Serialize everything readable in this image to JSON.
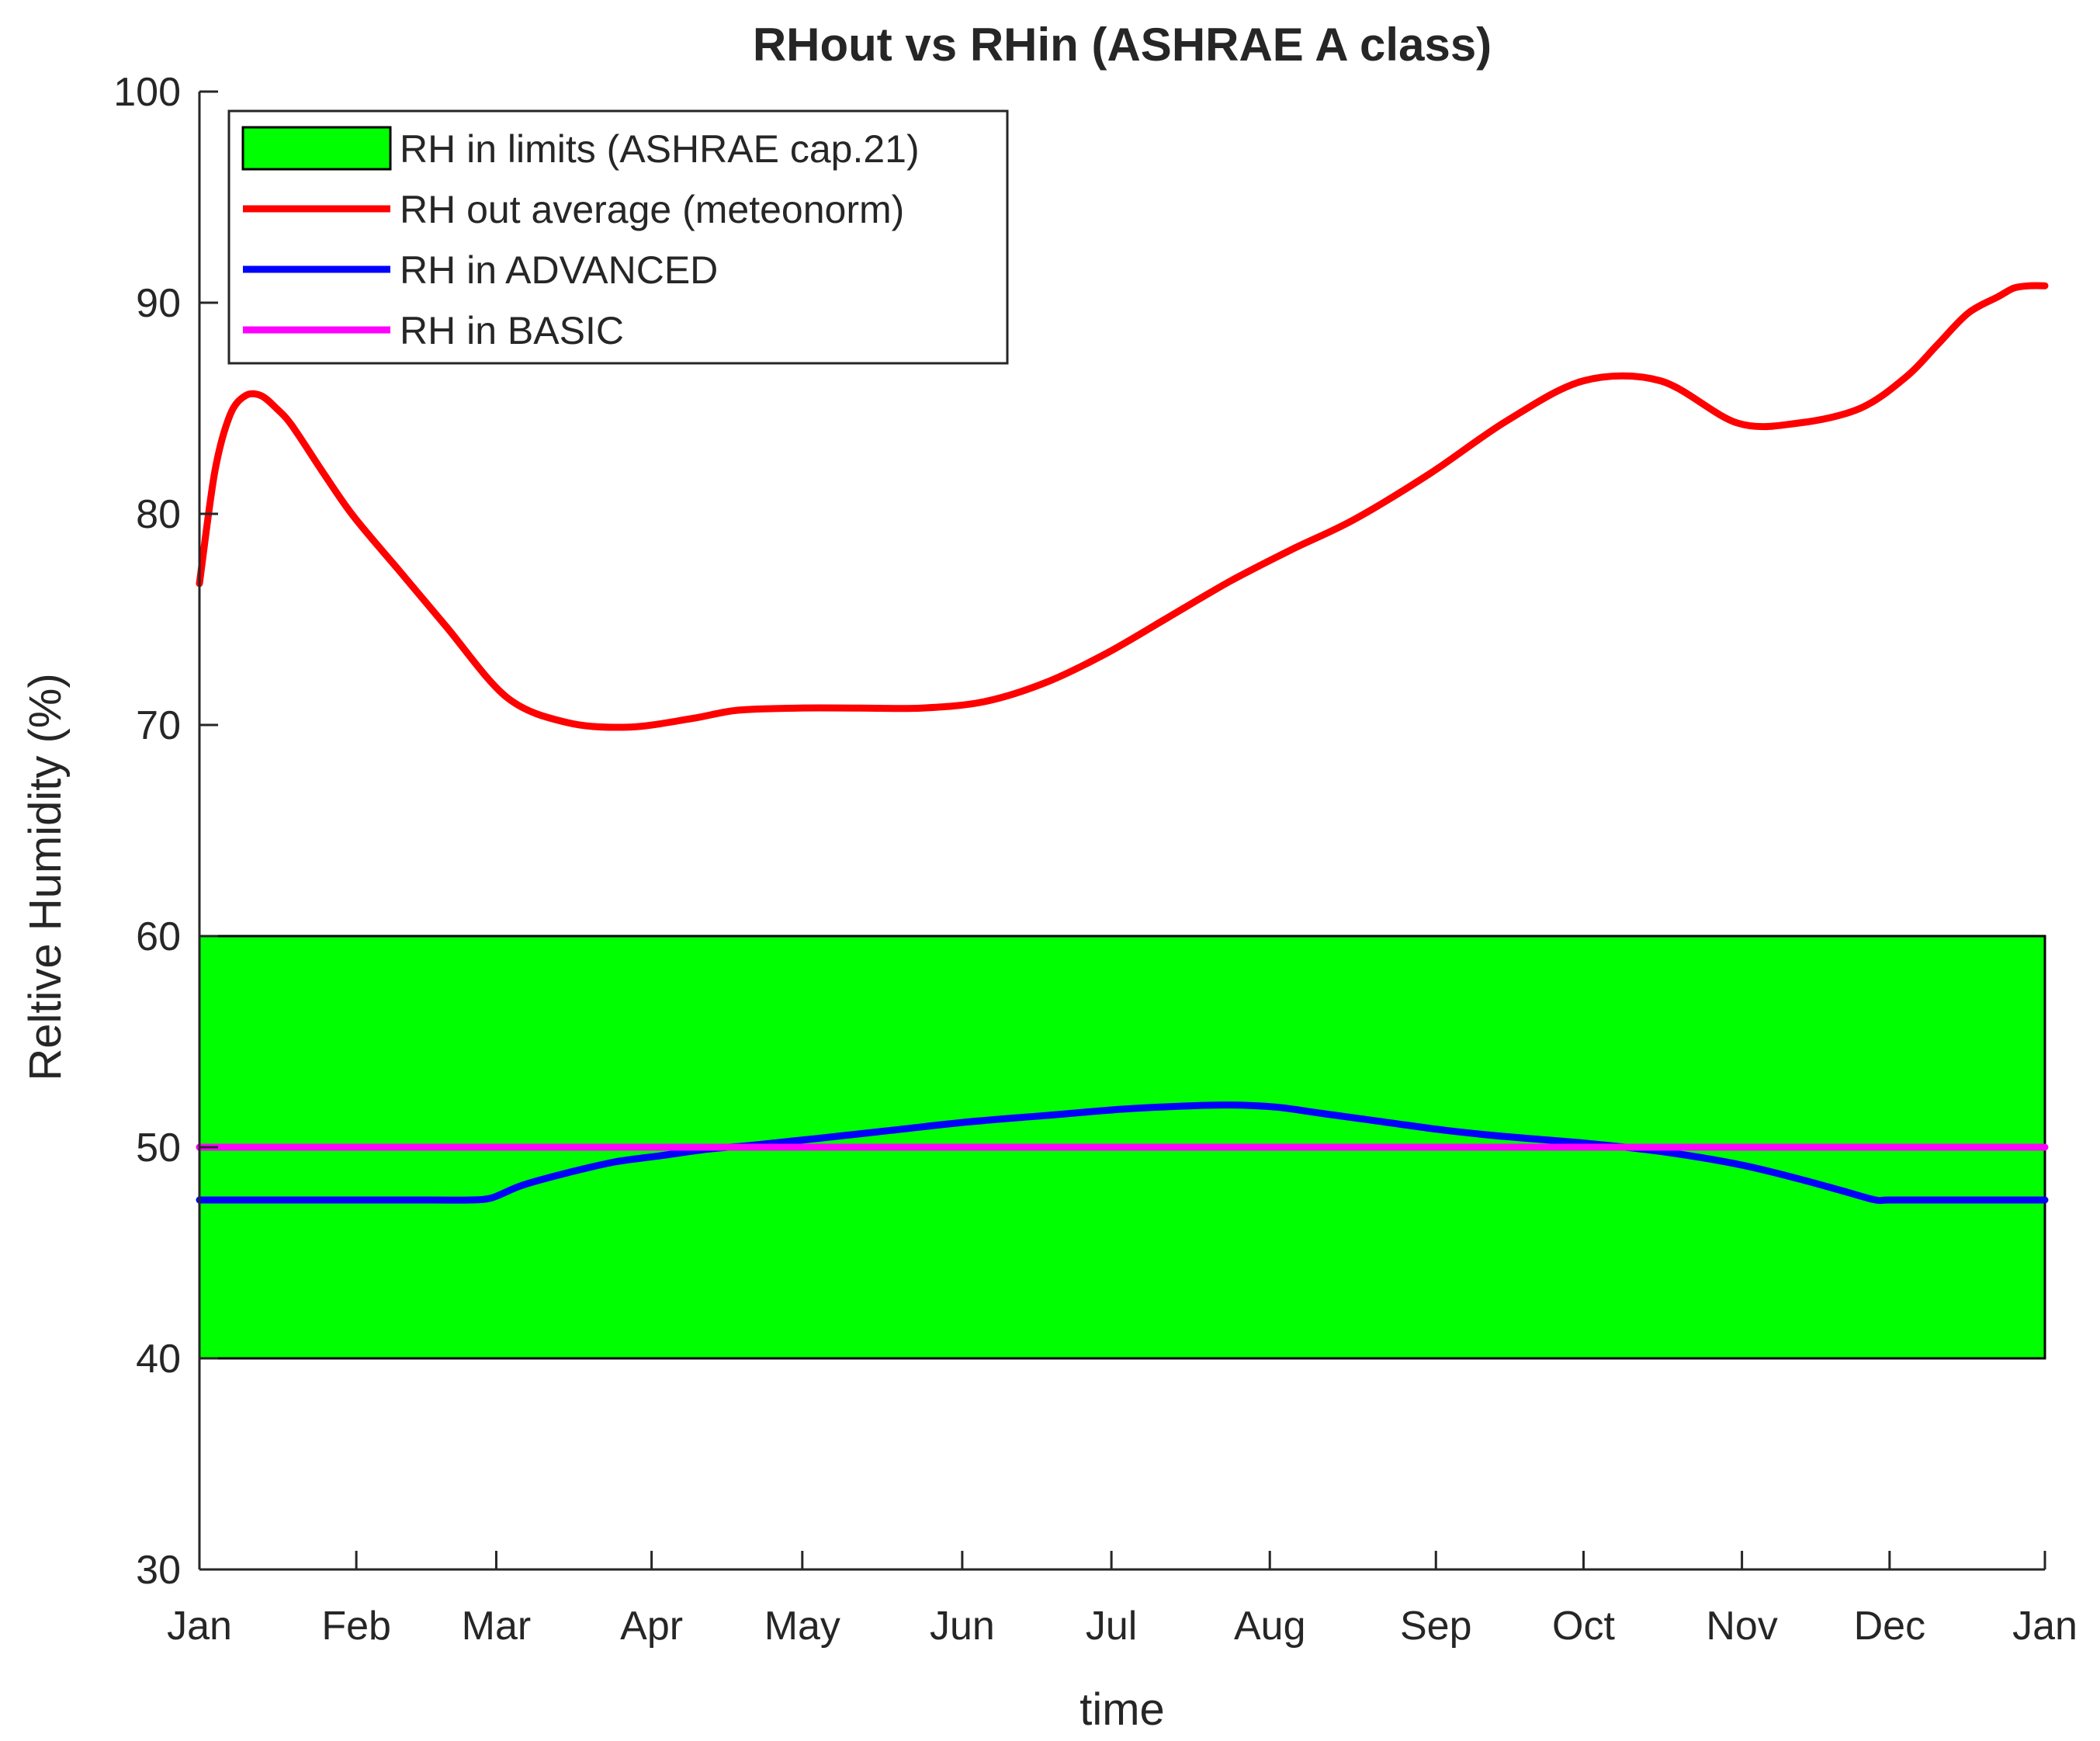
{
  "chart_data": {
    "type": "line",
    "title": "RHout vs RHin (ASHRAE A class)",
    "xlabel": "time",
    "ylabel": "Reltive Humidity (%)",
    "xlim": [
      0,
      12
    ],
    "ylim": [
      30,
      100
    ],
    "x_tick_labels": [
      "Jan",
      "Feb",
      "Mar",
      "Apr",
      "May",
      "Jun",
      "Jul",
      "Aug",
      "Sep",
      "Oct",
      "Nov",
      "Dec",
      "Jan"
    ],
    "x_ticks": [
      0,
      1.02,
      1.93,
      2.94,
      3.92,
      4.96,
      5.93,
      6.96,
      8.04,
      9.0,
      10.03,
      10.99,
      12.0
    ],
    "y_ticks": [
      30,
      40,
      50,
      60,
      70,
      80,
      90,
      100
    ],
    "y_tick_labels": [
      "30",
      "40",
      "50",
      "60",
      "70",
      "80",
      "90",
      "100"
    ],
    "legend_position": "top-left",
    "grid": false,
    "band": {
      "name": "RH in limits (ASHRAE cap.21)",
      "lower": 40,
      "upper": 60,
      "color": "#00ff00"
    },
    "series": [
      {
        "name": "RH out average (meteonorm)",
        "color": "#ff0000",
        "x": [
          0,
          0.1,
          0.2,
          0.3,
          0.4,
          0.5,
          0.6,
          0.8,
          1.0,
          1.3,
          1.6,
          2.0,
          2.4,
          2.8,
          3.2,
          3.5,
          3.9,
          4.3,
          4.7,
          5.1,
          5.5,
          5.9,
          6.3,
          6.7,
          7.1,
          7.5,
          8.0,
          8.5,
          9.0,
          9.5,
          10.0,
          10.4,
          10.8,
          11.1,
          11.3,
          11.5,
          11.7,
          11.8,
          11.9,
          12.0
        ],
        "y": [
          76.7,
          82.0,
          84.7,
          85.6,
          85.6,
          85.0,
          84.2,
          82.0,
          79.9,
          77.3,
          74.7,
          71.3,
          70.1,
          69.9,
          70.3,
          70.7,
          70.8,
          70.8,
          70.8,
          71.1,
          72.0,
          73.4,
          75.1,
          76.8,
          78.3,
          79.7,
          81.9,
          84.4,
          86.3,
          86.3,
          84.3,
          84.3,
          85.0,
          86.5,
          88.0,
          89.5,
          90.3,
          90.7,
          90.8,
          90.8
        ]
      },
      {
        "name": "RH in ADVANCED",
        "color": "#0000ff",
        "x": [
          0,
          0.5,
          1.0,
          1.5,
          1.75,
          1.9,
          2.1,
          2.4,
          2.7,
          3.0,
          3.3,
          3.6,
          4.0,
          4.5,
          5.0,
          5.5,
          6.0,
          6.4,
          6.7,
          7.0,
          7.3,
          7.7,
          8.1,
          8.5,
          9.0,
          9.5,
          10.0,
          10.4,
          10.7,
          10.9,
          11.0,
          11.5,
          12.0
        ],
        "y": [
          47.5,
          47.5,
          47.5,
          47.5,
          47.5,
          47.6,
          48.2,
          48.8,
          49.3,
          49.6,
          49.9,
          50.1,
          50.4,
          50.8,
          51.2,
          51.5,
          51.8,
          51.95,
          52.0,
          51.9,
          51.6,
          51.2,
          50.8,
          50.5,
          50.2,
          49.8,
          49.2,
          48.5,
          47.9,
          47.5,
          47.5,
          47.5,
          47.5
        ]
      },
      {
        "name": "RH in BASIC",
        "color": "#ff00ff",
        "x": [
          0,
          12
        ],
        "y": [
          50,
          50
        ]
      }
    ]
  }
}
